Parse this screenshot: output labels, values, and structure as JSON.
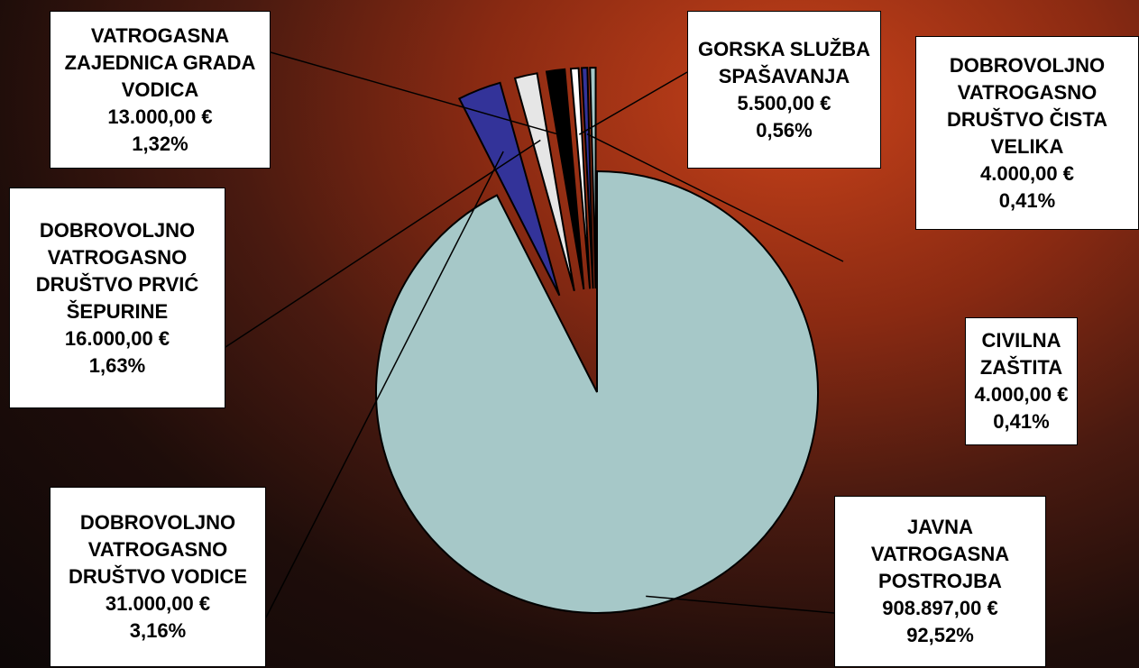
{
  "chart_data": {
    "type": "pie",
    "categories": [
      "JAVNA VATROGASNA POSTROJBA",
      "DOBROVOLJNO VATROGASNO DRUŠTVO VODICE",
      "DOBROVOLJNO VATROGASNO DRUŠTVO PRVIĆ ŠEPURINE",
      "VATROGASNA ZAJEDNICA GRADA VODICA",
      "GORSKA SLUŽBA SPAŠAVANJA",
      "DOBROVOLJNO VATROGASNO DRUŠTVO ČISTA VELIKA",
      "CIVILNA ZAŠTITA"
    ],
    "values": [
      908897,
      31000,
      16000,
      13000,
      5500,
      4000,
      4000
    ],
    "value_labels": [
      "908.897,00 €",
      "31.000,00 €",
      "16.000,00 €",
      "13.000,00 €",
      "5.500,00 €",
      "4.000,00 €",
      "4.000,00 €"
    ],
    "percents": [
      92.52,
      3.16,
      1.63,
      1.32,
      0.56,
      0.41,
      0.41
    ],
    "percent_labels": [
      "92,52%",
      "3,16%",
      "1,63%",
      "1,32%",
      "0,56%",
      "0,41%",
      "0,41%"
    ],
    "colors": [
      "#a6c8c8",
      "#333399",
      "#e6e6e6",
      "#000000",
      "#ffffff",
      "#333399",
      "#a6c8c8"
    ]
  }
}
